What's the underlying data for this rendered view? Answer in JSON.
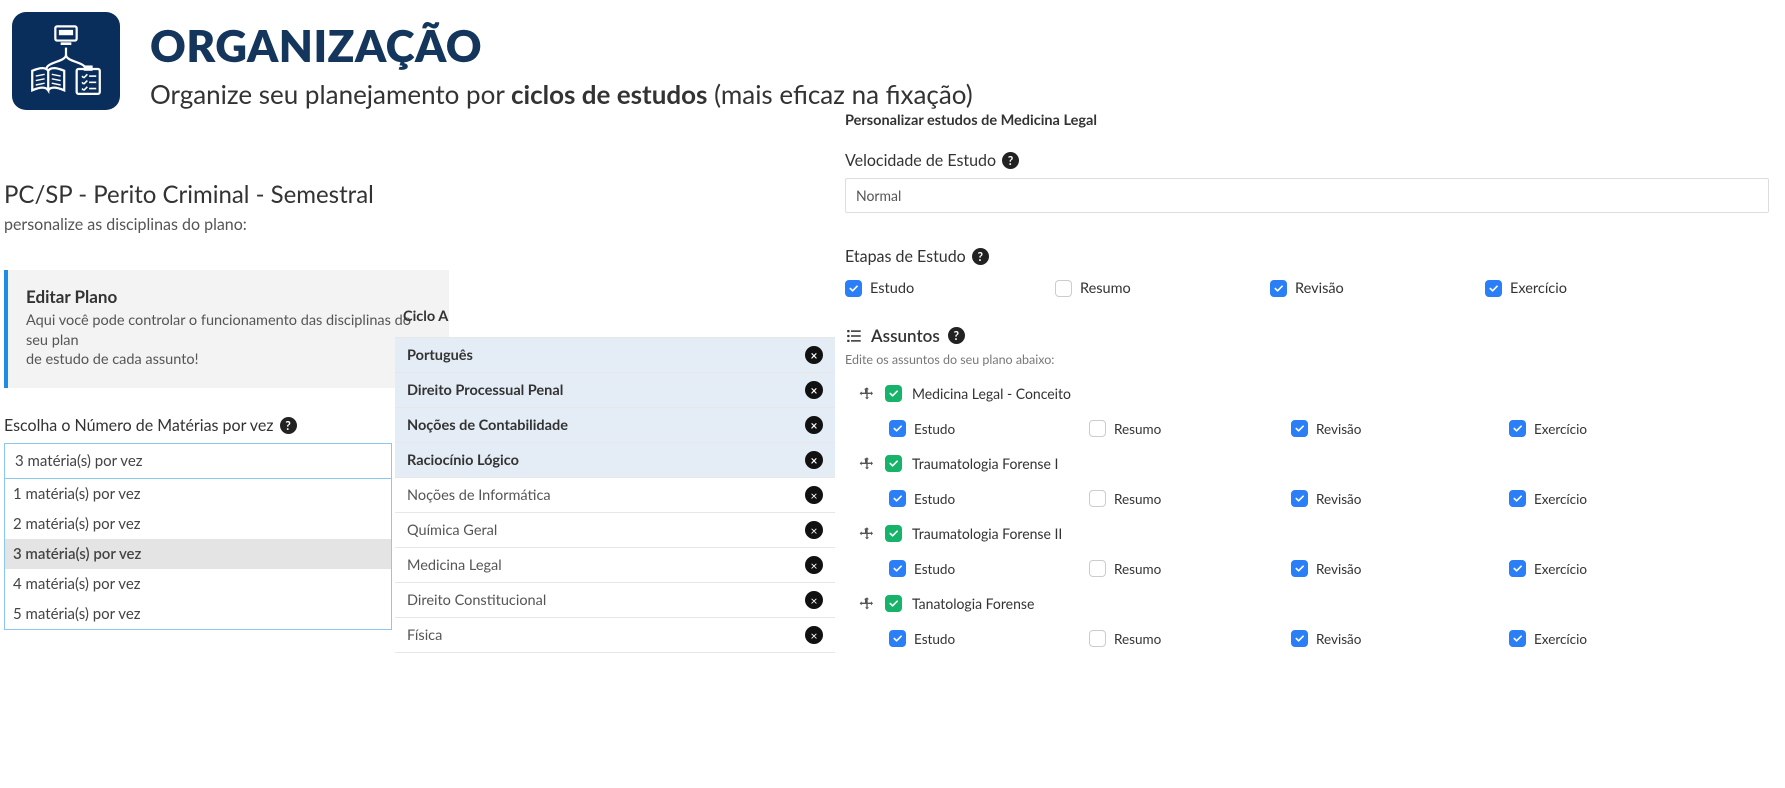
{
  "header": {
    "title": "ORGANIZAÇÃO",
    "subtitle_pre": "Organize seu planejamento por ",
    "subtitle_bold": "ciclos de estudos",
    "subtitle_post": " (mais eficaz na fixação)",
    "icon_bg": "#0a2e5c",
    "title_color": "#14365c"
  },
  "left": {
    "plan_title": "PC/SP - Perito Criminal - Semestral",
    "plan_sub": "personalize as disciplinas do plano:",
    "edit_title": "Editar Plano",
    "edit_desc_line1": "Aqui você pode controlar o funcionamento das disciplinas do seu plan",
    "edit_desc_line2": "de estudo de cada assunto!",
    "select_label": "Escolha o Número de Matérias por vez",
    "select_current": "3 matéria(s) por vez",
    "select_options": [
      {
        "label": "1 matéria(s) por vez",
        "selected": false
      },
      {
        "label": "2 matéria(s) por vez",
        "selected": false
      },
      {
        "label": "3 matéria(s) por vez",
        "selected": true
      },
      {
        "label": "4 matéria(s) por vez",
        "selected": false
      },
      {
        "label": "5 matéria(s) por vez",
        "selected": false
      }
    ]
  },
  "cycle": {
    "title": "Ciclo A",
    "items": [
      {
        "label": "Português",
        "active": true
      },
      {
        "label": "Direito Processual Penal",
        "active": true
      },
      {
        "label": "Noções de Contabilidade",
        "active": true
      },
      {
        "label": "Raciocínio Lógico",
        "active": true
      },
      {
        "label": "Noções de Informática",
        "active": false
      },
      {
        "label": "Química Geral",
        "active": false
      },
      {
        "label": "Medicina Legal",
        "active": false
      },
      {
        "label": "Direito Constitucional",
        "active": false
      },
      {
        "label": "Física",
        "active": false
      }
    ]
  },
  "right": {
    "section_title": "Personalizar estudos de Medicina Legal",
    "speed_label": "Velocidade de Estudo",
    "speed_value": "Normal",
    "stages_label": "Etapas de Estudo",
    "stages": [
      {
        "label": "Estudo",
        "checked": true
      },
      {
        "label": "Resumo",
        "checked": false
      },
      {
        "label": "Revisão",
        "checked": true
      },
      {
        "label": "Exercício",
        "checked": true
      }
    ],
    "topics_head": "Assuntos",
    "topics_sub": "Edite os assuntos do seu plano abaixo:",
    "topics": [
      {
        "label": "Medicina Legal - Conceito",
        "stages": [
          {
            "label": "Estudo",
            "checked": true
          },
          {
            "label": "Resumo",
            "checked": false
          },
          {
            "label": "Revisão",
            "checked": true
          },
          {
            "label": "Exercício",
            "checked": true
          }
        ]
      },
      {
        "label": "Traumatologia Forense I",
        "stages": [
          {
            "label": "Estudo",
            "checked": true
          },
          {
            "label": "Resumo",
            "checked": false
          },
          {
            "label": "Revisão",
            "checked": true
          },
          {
            "label": "Exercício",
            "checked": true
          }
        ]
      },
      {
        "label": "Traumatologia Forense II",
        "stages": [
          {
            "label": "Estudo",
            "checked": true
          },
          {
            "label": "Resumo",
            "checked": false
          },
          {
            "label": "Revisão",
            "checked": true
          },
          {
            "label": "Exercício",
            "checked": true
          }
        ]
      },
      {
        "label": "Tanatologia Forense",
        "stages": [
          {
            "label": "Estudo",
            "checked": true
          },
          {
            "label": "Resumo",
            "checked": false
          },
          {
            "label": "Revisão",
            "checked": true
          },
          {
            "label": "Exercício",
            "checked": true
          }
        ]
      }
    ]
  },
  "colors": {
    "blue": "#2a7ef6",
    "green": "#17b36a",
    "active_row_bg": "#e4ecf5",
    "panel_bg": "#f3f3f3",
    "panel_accent": "#1e8de6",
    "select_border": "#8cc7ef"
  }
}
